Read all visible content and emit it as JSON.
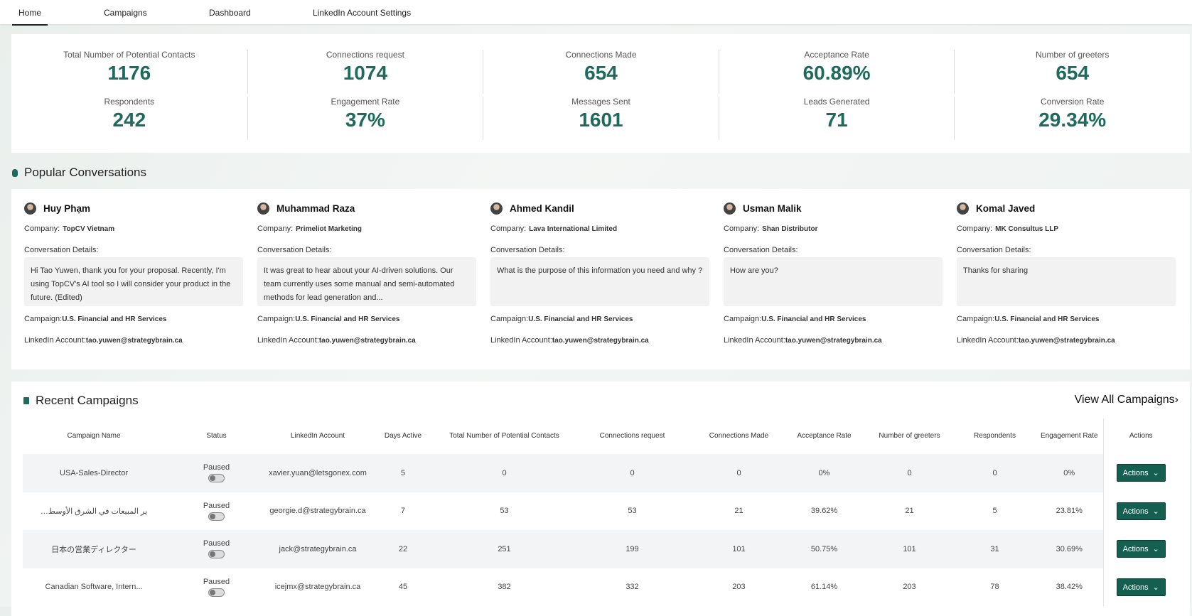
{
  "nav": {
    "tabs": [
      "Home",
      "Campaigns",
      "Dashboard",
      "LinkedIn Account Settings"
    ]
  },
  "stats": [
    {
      "label": "Total Number of Potential Contacts",
      "value": "1176"
    },
    {
      "label": "Connections request",
      "value": "1074"
    },
    {
      "label": "Connections Made",
      "value": "654"
    },
    {
      "label": "Acceptance Rate",
      "value": "60.89%"
    },
    {
      "label": "Number of greeters",
      "value": "654"
    },
    {
      "label": "Respondents",
      "value": "242"
    },
    {
      "label": "Engagement Rate",
      "value": "37%"
    },
    {
      "label": "Messages Sent",
      "value": "1601"
    },
    {
      "label": "Leads Generated",
      "value": "71"
    },
    {
      "label": "Conversion Rate",
      "value": "29.34%"
    }
  ],
  "popular": {
    "title": "Popular Conversations",
    "labels": {
      "company": "Company:",
      "details": "Conversation Details:",
      "campaign": "Campaign:",
      "account": "LinkedIn Account:"
    },
    "cards": [
      {
        "name": "Huy Phạm",
        "company": "TopCV Vietnam",
        "message": "Hi Tao Yuwen, thank you for your proposal. Recently, I'm using TopCV's AI tool so I will consider your product in the future. (Edited)",
        "campaign": "U.S. Financial and HR Services",
        "account": "tao.yuwen@strategybrain.ca"
      },
      {
        "name": "Muhammad Raza",
        "company": "Primeliot Marketing",
        "message": "It was great to hear about your AI-driven solutions. Our team currently uses some manual and semi-automated methods for lead generation and...",
        "campaign": "U.S. Financial and HR Services",
        "account": "tao.yuwen@strategybrain.ca"
      },
      {
        "name": "Ahmed Kandil",
        "company": "Lava International Limited",
        "message": "What is the purpose of this information you need and why ?",
        "campaign": "U.S. Financial and HR Services",
        "account": "tao.yuwen@strategybrain.ca"
      },
      {
        "name": "Usman Malik",
        "company": "Shan Distributor",
        "message": "How are you?",
        "campaign": "U.S. Financial and HR Services",
        "account": "tao.yuwen@strategybrain.ca"
      },
      {
        "name": "Komal Javed",
        "company": "MK Consultus LLP",
        "message": "Thanks for sharing",
        "campaign": "U.S. Financial and HR Services",
        "account": "tao.yuwen@strategybrain.ca"
      }
    ]
  },
  "recent": {
    "title": "Recent Campaigns",
    "view_all": "View All Campaigns",
    "table": {
      "headers": [
        "Campaign Name",
        "Status",
        "LinkedIn Account",
        "Days Active",
        "Total Number of Potential Contacts",
        "Connections request",
        "Connections Made",
        "Acceptance Rate",
        "Number of greeters",
        "Respondents",
        "Engagement Rate",
        "Actions"
      ],
      "rows": [
        [
          "USA-Sales-Director",
          "Paused",
          "xavier.yuan@letsgonex.com",
          "5",
          "0",
          "0",
          "0",
          "0%",
          "0",
          "0",
          "0%",
          "Actions"
        ],
        [
          "…ير المبيعات في الشرق الأوسط",
          "Paused",
          "georgie.d@strategybrain.ca",
          "7",
          "53",
          "53",
          "21",
          "39.62%",
          "21",
          "5",
          "23.81%",
          "Actions"
        ],
        [
          "日本の営業ディレクター",
          "Paused",
          "jack@strategybrain.ca",
          "22",
          "251",
          "199",
          "101",
          "50.75%",
          "101",
          "31",
          "30.69%",
          "Actions"
        ],
        [
          "Canadian Software, Intern...",
          "Paused",
          "icejmx@strategybrain.ca",
          "45",
          "382",
          "332",
          "203",
          "61.14%",
          "203",
          "78",
          "38.42%",
          "Actions"
        ]
      ]
    }
  }
}
